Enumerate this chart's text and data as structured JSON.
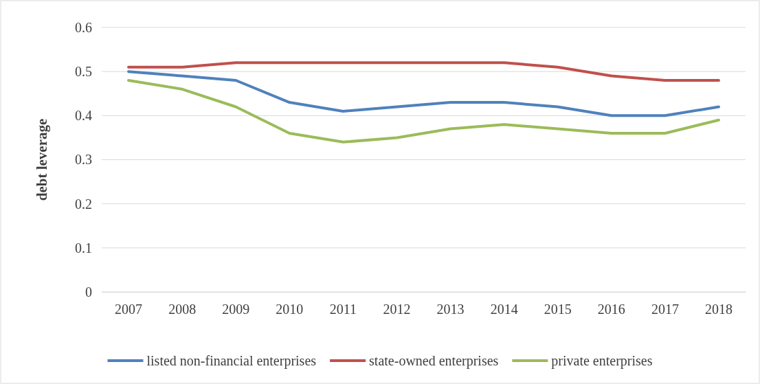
{
  "chart_data": {
    "type": "line",
    "ylabel": "debt leverage",
    "categories": [
      "2007",
      "2008",
      "2009",
      "2010",
      "2011",
      "2012",
      "2013",
      "2014",
      "2015",
      "2016",
      "2017",
      "2018"
    ],
    "series": [
      {
        "name": "listed non-financial enterprises",
        "color": "#4f81bd",
        "values": [
          0.5,
          0.49,
          0.48,
          0.43,
          0.41,
          0.42,
          0.43,
          0.43,
          0.42,
          0.4,
          0.4,
          0.42
        ]
      },
      {
        "name": "state-owned enterprises",
        "color": "#c0504d",
        "values": [
          0.51,
          0.51,
          0.52,
          0.52,
          0.52,
          0.52,
          0.52,
          0.52,
          0.51,
          0.49,
          0.48,
          0.48
        ]
      },
      {
        "name": "private enterprises",
        "color": "#9bbb59",
        "values": [
          0.48,
          0.46,
          0.42,
          0.36,
          0.34,
          0.35,
          0.37,
          0.38,
          0.37,
          0.36,
          0.36,
          0.39
        ]
      }
    ],
    "ylim": [
      0,
      0.6
    ],
    "yticks": [
      0,
      0.1,
      0.2,
      0.3,
      0.4,
      0.5,
      0.6
    ],
    "grid": "y",
    "legend": "bottom",
    "marker": "none",
    "line_style": "solid"
  }
}
